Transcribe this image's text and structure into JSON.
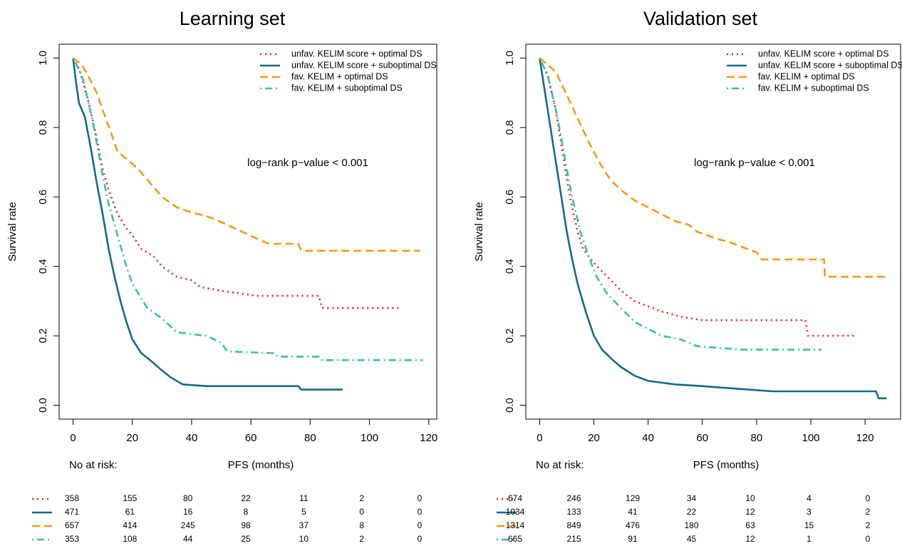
{
  "chart_data": [
    {
      "type": "line",
      "title": "Learning set",
      "y_label": "Survival rate",
      "x_label": "PFS (months)",
      "xlim": [
        -4.7,
        122.7
      ],
      "ylim": [
        -0.04,
        1.04
      ],
      "xticks": [
        0,
        20,
        40,
        60,
        80,
        100,
        120
      ],
      "yticks": [
        {
          "value": 0,
          "label": "0.0"
        },
        0.2,
        0.4,
        0.6,
        0.8,
        {
          "value": 1,
          "label": "1.0"
        }
      ],
      "annotation": "log−rank p−value < 0.001",
      "legend": "topright",
      "risk_label": "No at risk:",
      "series": [
        {
          "name": "unfav. KELIM score + optimal DS",
          "color": "#e0201b",
          "linestyle": "dotted",
          "x": [
            0,
            2,
            5,
            8,
            10,
            12,
            15,
            18,
            20,
            23,
            27,
            30,
            35,
            40,
            43,
            50,
            62,
            83,
            84,
            110
          ],
          "values": [
            1.0,
            0.97,
            0.88,
            0.77,
            0.68,
            0.62,
            0.55,
            0.51,
            0.49,
            0.45,
            0.43,
            0.4,
            0.37,
            0.36,
            0.34,
            0.33,
            0.315,
            0.315,
            0.28,
            0.28
          ],
          "at_risk": [
            358,
            155,
            80,
            22,
            11,
            2,
            0
          ]
        },
        {
          "name": "unfav. KELIM score + suboptimal DS",
          "color": "#136b8a",
          "linestyle": "solid",
          "x": [
            0,
            1,
            2,
            4,
            6,
            8,
            10,
            12,
            14,
            16,
            18,
            20,
            23,
            26,
            30,
            33,
            37,
            45,
            76,
            77,
            91
          ],
          "values": [
            1.0,
            0.93,
            0.87,
            0.83,
            0.74,
            0.64,
            0.55,
            0.45,
            0.37,
            0.3,
            0.24,
            0.19,
            0.15,
            0.13,
            0.1,
            0.08,
            0.06,
            0.055,
            0.055,
            0.045,
            0.045
          ],
          "at_risk": [
            471,
            61,
            16,
            8,
            5,
            0,
            0
          ]
        },
        {
          "name": "fav. KELIM + optimal DS",
          "color": "#f39a10",
          "linestyle": "dashed",
          "x": [
            0,
            3,
            5,
            8,
            10,
            13,
            15,
            18,
            22,
            26,
            30,
            35,
            40,
            45,
            52,
            57,
            62,
            66,
            76,
            77,
            117
          ],
          "values": [
            1.0,
            0.98,
            0.95,
            0.9,
            0.85,
            0.78,
            0.73,
            0.71,
            0.68,
            0.64,
            0.6,
            0.57,
            0.555,
            0.545,
            0.52,
            0.5,
            0.48,
            0.465,
            0.465,
            0.445,
            0.445
          ],
          "at_risk": [
            657,
            414,
            245,
            98,
            37,
            8,
            0
          ]
        },
        {
          "name": "fav. KELIM + suboptimal DS",
          "color": "#3bbcb2",
          "linestyle": "dotdash",
          "x": [
            0,
            3,
            5,
            7,
            10,
            12,
            15,
            18,
            20,
            25,
            30,
            35,
            45,
            50,
            52,
            68,
            69,
            83,
            84,
            118
          ],
          "values": [
            1.0,
            0.95,
            0.88,
            0.8,
            0.66,
            0.58,
            0.49,
            0.4,
            0.35,
            0.28,
            0.25,
            0.21,
            0.2,
            0.18,
            0.155,
            0.15,
            0.14,
            0.14,
            0.13,
            0.13
          ],
          "at_risk": [
            353,
            108,
            44,
            25,
            10,
            2,
            0
          ]
        }
      ]
    },
    {
      "type": "line",
      "title": "Validation set",
      "y_label": "Survival rate",
      "x_label": "PFS (months)",
      "xlim": [
        -5.1,
        133.1
      ],
      "ylim": [
        -0.04,
        1.04
      ],
      "xticks": [
        0,
        20,
        40,
        60,
        80,
        100,
        120
      ],
      "yticks": [
        {
          "value": 0,
          "label": "0.0"
        },
        0.2,
        0.4,
        0.6,
        0.8,
        {
          "value": 1,
          "label": "1.0"
        }
      ],
      "annotation": "log−rank p−value < 0.001",
      "legend": "topright",
      "risk_label": "No at risk:",
      "series": [
        {
          "name": "unfav. KELIM score + optimal DS",
          "color": "#e0201b",
          "linestyle": "dotted",
          "x": [
            0,
            3,
            6,
            8,
            10,
            12,
            14,
            16,
            20,
            25,
            30,
            35,
            40,
            45,
            52,
            60,
            98,
            99,
            116
          ],
          "values": [
            1.0,
            0.95,
            0.85,
            0.75,
            0.65,
            0.57,
            0.5,
            0.45,
            0.41,
            0.37,
            0.33,
            0.3,
            0.285,
            0.27,
            0.255,
            0.245,
            0.245,
            0.2,
            0.2
          ],
          "at_risk": [
            674,
            246,
            129,
            34,
            10,
            4,
            0
          ]
        },
        {
          "name": "unfav. KELIM score + suboptimal DS",
          "color": "#136b8a",
          "linestyle": "solid",
          "x": [
            0,
            2,
            4,
            6,
            8,
            10,
            12,
            14,
            17,
            20,
            23,
            27,
            30,
            35,
            40,
            50,
            60,
            77,
            86,
            124,
            125,
            128
          ],
          "values": [
            1.0,
            0.9,
            0.8,
            0.7,
            0.6,
            0.5,
            0.42,
            0.35,
            0.27,
            0.2,
            0.16,
            0.13,
            0.11,
            0.085,
            0.07,
            0.06,
            0.055,
            0.045,
            0.04,
            0.04,
            0.02,
            0.02
          ],
          "at_risk": [
            1034,
            133,
            41,
            22,
            12,
            3,
            2
          ]
        },
        {
          "name": "fav. KELIM + optimal DS",
          "color": "#f39a10",
          "linestyle": "dashed",
          "x": [
            0,
            3,
            6,
            9,
            12,
            15,
            18,
            22,
            26,
            30,
            35,
            40,
            45,
            50,
            55,
            58,
            65,
            70,
            80,
            82,
            104.9,
            105.2,
            128
          ],
          "values": [
            1.0,
            0.98,
            0.96,
            0.91,
            0.86,
            0.81,
            0.76,
            0.7,
            0.65,
            0.62,
            0.59,
            0.57,
            0.55,
            0.53,
            0.52,
            0.5,
            0.48,
            0.47,
            0.44,
            0.42,
            0.42,
            0.37,
            0.37
          ],
          "at_risk": [
            1314,
            849,
            476,
            180,
            63,
            15,
            2
          ]
        },
        {
          "name": "fav. KELIM + suboptimal DS",
          "color": "#3bbcb2",
          "linestyle": "dotdash",
          "x": [
            0,
            3,
            6,
            8,
            10,
            12,
            15,
            18,
            21,
            25,
            30,
            35,
            40,
            45,
            52,
            58,
            75,
            104
          ],
          "values": [
            1.0,
            0.95,
            0.85,
            0.77,
            0.68,
            0.6,
            0.5,
            0.43,
            0.37,
            0.32,
            0.28,
            0.24,
            0.22,
            0.2,
            0.19,
            0.17,
            0.16,
            0.16
          ],
          "at_risk": [
            665,
            215,
            91,
            45,
            12,
            1,
            0
          ]
        }
      ]
    }
  ]
}
